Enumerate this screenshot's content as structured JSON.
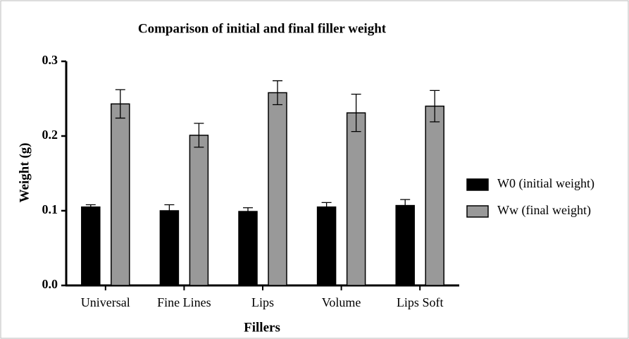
{
  "chart_data": {
    "type": "bar",
    "title": "Comparison of initial and final filler weight",
    "x_label": "Fillers",
    "y_label": "Weight (g)",
    "categories": [
      "Universal",
      "Fine Lines",
      "Lips",
      "Volume",
      "Lips Soft"
    ],
    "series": [
      {
        "name": "W0 (initial weight)",
        "color": "#000000",
        "values": [
          0.105,
          0.1,
          0.099,
          0.105,
          0.107
        ],
        "errors": [
          0.003,
          0.008,
          0.005,
          0.006,
          0.008
        ]
      },
      {
        "name": "Ww (final weight)",
        "color": "#999999",
        "values": [
          0.243,
          0.201,
          0.258,
          0.231,
          0.24
        ],
        "errors": [
          0.019,
          0.016,
          0.016,
          0.025,
          0.021
        ]
      }
    ],
    "ylim": [
      0,
      0.3
    ],
    "yticks": [
      {
        "value": 0,
        "label": "0.0"
      },
      0.1,
      0.2,
      0.3
    ],
    "legend": "right"
  }
}
